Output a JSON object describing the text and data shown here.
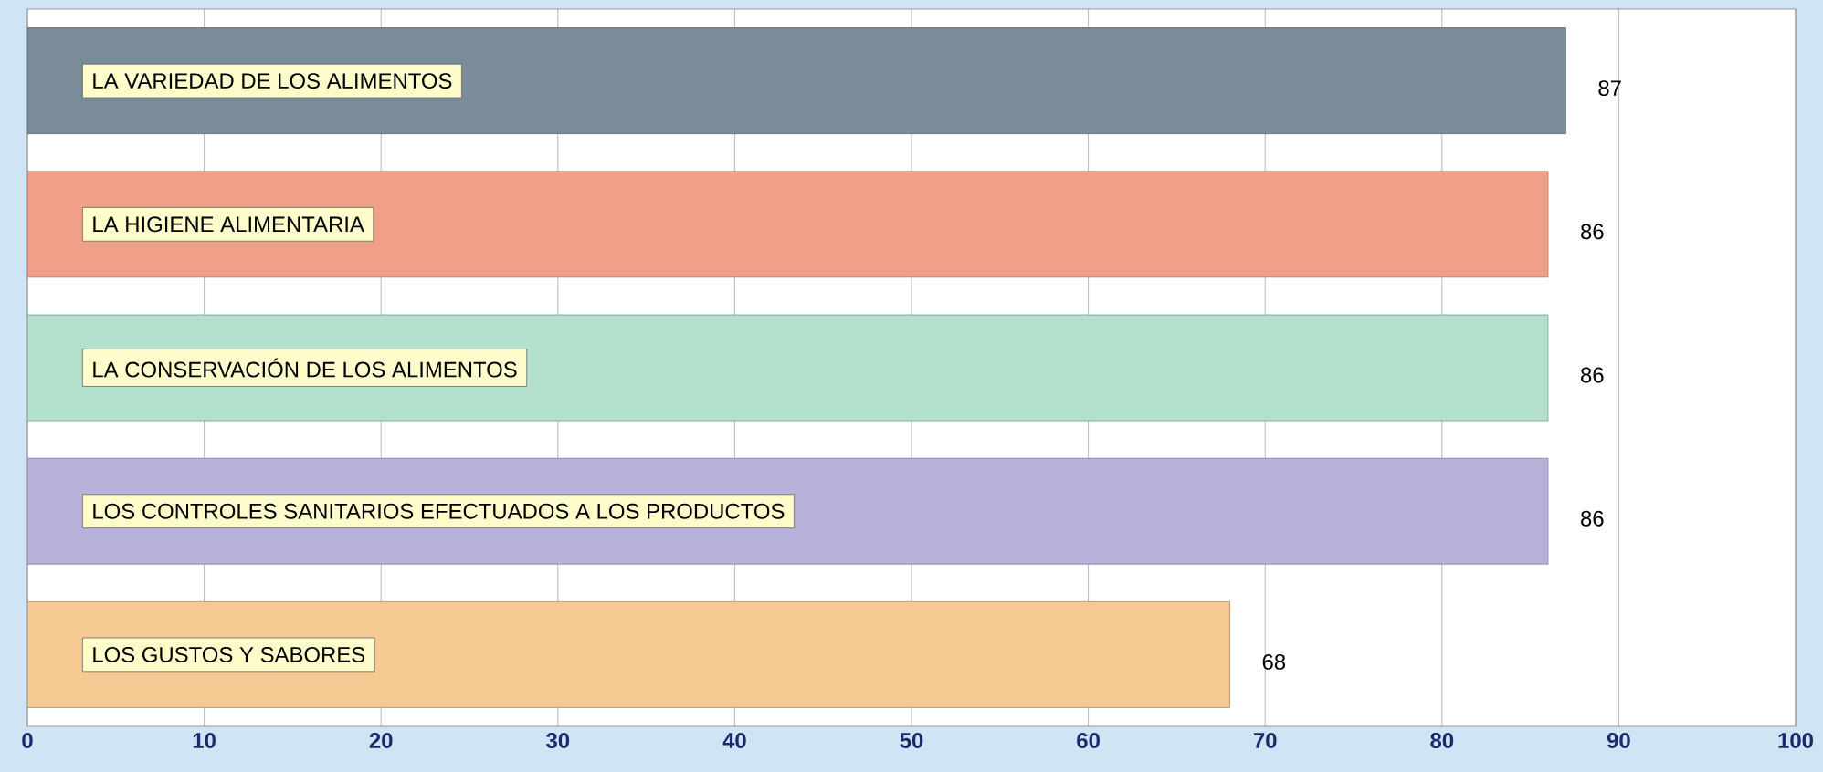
{
  "chart_data": {
    "type": "bar",
    "orientation": "horizontal",
    "categories": [
      "LA VARIEDAD DE LOS ALIMENTOS",
      "LA HIGIENE ALIMENTARIA",
      "LA CONSERVACIÓN DE LOS ALIMENTOS",
      "LOS CONTROLES SANITARIOS EFECTUADOS A LOS PRODUCTOS",
      "LOS GUSTOS Y SABORES"
    ],
    "values": [
      87,
      86,
      86,
      86,
      68
    ],
    "colors": [
      "#7a8c98",
      "#f0a088",
      "#b2e0cc",
      "#b8b2da",
      "#f6c892"
    ],
    "xlim": [
      0,
      100
    ],
    "xticks": [
      0,
      10,
      20,
      30,
      40,
      50,
      60,
      70,
      80,
      90,
      100
    ],
    "grid": "x",
    "data_labels": true
  }
}
